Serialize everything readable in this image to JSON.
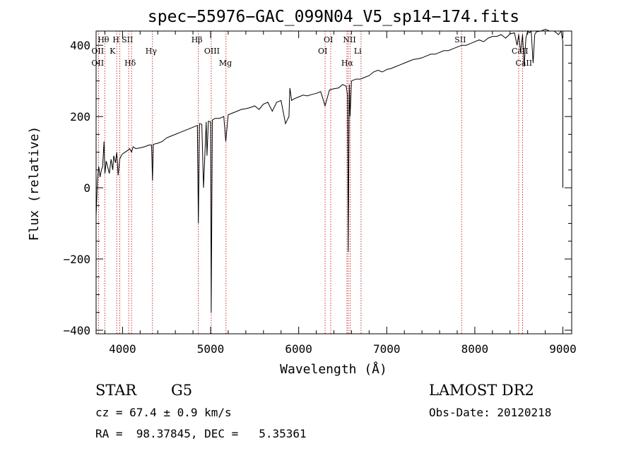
{
  "chart_data": {
    "type": "line",
    "title": "spec−55976−GAC_099N04_V5_sp14−174.fits",
    "xlabel": "Wavelength (Å)",
    "ylabel": "Flux (relative)",
    "xlim": [
      3700,
      9100
    ],
    "ylim": [
      -410,
      440
    ],
    "x_ticks": [
      4000,
      5000,
      6000,
      7000,
      8000,
      9000
    ],
    "x_tick_labels": [
      "4000",
      "5000",
      "6000",
      "7000",
      "8000",
      "9000"
    ],
    "y_ticks": [
      -400,
      -200,
      0,
      200,
      400
    ],
    "y_tick_labels": [
      "−400",
      "−200",
      "0",
      "200",
      "400"
    ],
    "grid": false,
    "series": [
      {
        "x": [
          3700,
          3715,
          3730,
          3745,
          3760,
          3775,
          3790,
          3800,
          3815,
          3830,
          3850,
          3870,
          3889,
          3900,
          3920,
          3934,
          3950,
          3968,
          3985,
          4000,
          4030,
          4060,
          4080,
          4102,
          4120,
          4150,
          4200,
          4250,
          4300,
          4330,
          4340,
          4350,
          4400,
          4450,
          4500,
          4550,
          4600,
          4650,
          4700,
          4750,
          4800,
          4850,
          4861,
          4875,
          4900,
          4920,
          4950,
          4959,
          4975,
          5000,
          5007,
          5020,
          5050,
          5100,
          5150,
          5172,
          5200,
          5250,
          5300,
          5350,
          5400,
          5450,
          5500,
          5550,
          5600,
          5650,
          5700,
          5750,
          5800,
          5850,
          5870,
          5890,
          5900,
          5920,
          5950,
          6000,
          6050,
          6100,
          6150,
          6200,
          6250,
          6300,
          6350,
          6400,
          6450,
          6500,
          6540,
          6555,
          6563,
          6575,
          6584,
          6600,
          6650,
          6700,
          6750,
          6800,
          6850,
          6900,
          6950,
          7000,
          7050,
          7100,
          7150,
          7200,
          7250,
          7300,
          7350,
          7400,
          7450,
          7500,
          7550,
          7600,
          7650,
          7700,
          7750,
          7800,
          7850,
          7900,
          7950,
          8000,
          8050,
          8100,
          8150,
          8200,
          8250,
          8300,
          8350,
          8400,
          8450,
          8480,
          8498,
          8520,
          8542,
          8560,
          8580,
          8600,
          8620,
          8640,
          8662,
          8680,
          8700,
          8750,
          8800,
          8850,
          8900,
          8950,
          8980,
          9000,
          9000
        ],
        "y": [
          -80,
          20,
          60,
          30,
          50,
          60,
          130,
          40,
          75,
          60,
          40,
          80,
          50,
          90,
          70,
          100,
          35,
          80,
          90,
          95,
          100,
          105,
          110,
          100,
          115,
          110,
          112,
          115,
          120,
          120,
          20,
          122,
          125,
          130,
          140,
          145,
          150,
          155,
          160,
          165,
          170,
          175,
          -100,
          180,
          178,
          0,
          185,
          90,
          187,
          185,
          -350,
          190,
          195,
          195,
          200,
          130,
          205,
          210,
          215,
          220,
          222,
          225,
          230,
          220,
          235,
          240,
          215,
          240,
          245,
          180,
          190,
          200,
          280,
          245,
          250,
          255,
          260,
          258,
          262,
          265,
          270,
          230,
          275,
          278,
          280,
          290,
          285,
          260,
          -180,
          290,
          200,
          300,
          305,
          305,
          310,
          315,
          325,
          330,
          325,
          332,
          335,
          340,
          345,
          350,
          355,
          360,
          362,
          365,
          370,
          375,
          375,
          380,
          385,
          385,
          390,
          395,
          400,
          400,
          405,
          410,
          415,
          410,
          420,
          425,
          425,
          430,
          420,
          432,
          435,
          400,
          430,
          380,
          430,
          340,
          420,
          440,
          435,
          440,
          350,
          430,
          438,
          440,
          445,
          440,
          440,
          430,
          440,
          410,
          0
        ]
      }
    ],
    "annotations": [
      {
        "label": "Hθ",
        "x": 3798
      },
      {
        "label": "OII",
        "x": 3727
      },
      {
        "label": "OII",
        "x": 3727
      },
      {
        "label": "H",
        "x": 3968
      },
      {
        "label": "K",
        "x": 3934
      },
      {
        "label": "SII",
        "x": 4070
      },
      {
        "label": "Hδ",
        "x": 4102
      },
      {
        "label": "Hγ",
        "x": 4340
      },
      {
        "label": "Hβ",
        "x": 4861
      },
      {
        "label": "OIII",
        "x": 5007
      },
      {
        "label": "Mg",
        "x": 5175
      },
      {
        "label": "OI",
        "x": 6300
      },
      {
        "label": "OI",
        "x": 6364
      },
      {
        "label": "Hα",
        "x": 6563
      },
      {
        "label": "NII",
        "x": 6584
      },
      {
        "label": "Li",
        "x": 6708
      },
      {
        "label": "SII",
        "x": 7850
      },
      {
        "label": "CaII",
        "x": 8498
      },
      {
        "label": "CaII",
        "x": 8542
      }
    ],
    "marker_lines_x": [
      3727,
      3798,
      3934,
      3968,
      4070,
      4102,
      4340,
      4861,
      5007,
      5175,
      6300,
      6364,
      6548,
      6563,
      6584,
      6708,
      7850,
      8498,
      8542
    ]
  },
  "info": {
    "object_class": "STAR",
    "subclass": "G5",
    "survey": "LAMOST DR2",
    "cz": "cz = 67.4 ± 0.9 km/s",
    "obs_date": "Obs-Date: 20120218",
    "radec": "RA =  98.37845, DEC =   5.35361"
  },
  "colors": {
    "spectrum": "#000000",
    "marker_line": "#c00000",
    "axes": "#000000"
  }
}
